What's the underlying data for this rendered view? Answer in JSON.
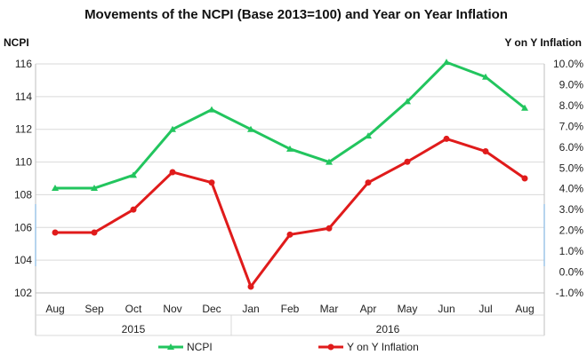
{
  "chart_data": {
    "type": "line",
    "title": "Movements of the NCPI (Base 2013=100) and Year on Year Inflation",
    "ylabel_left": "NCPI",
    "ylabel_right": "Y on Y Inflation",
    "categories": [
      "Aug",
      "Sep",
      "Oct",
      "Nov",
      "Dec",
      "Jan",
      "Feb",
      "Mar",
      "Apr",
      "May",
      "Jun",
      "Jul",
      "Aug"
    ],
    "year_groups": [
      {
        "label": "2015",
        "start": 0,
        "end": 4
      },
      {
        "label": "2016",
        "start": 5,
        "end": 12
      }
    ],
    "y_left": {
      "min": 102,
      "max": 116,
      "ticks": [
        102,
        104,
        106,
        108,
        110,
        112,
        114,
        116
      ]
    },
    "y_right": {
      "min": -1.0,
      "max": 10.0,
      "ticks": [
        -1,
        0,
        1,
        2,
        3,
        4,
        5,
        6,
        7,
        8,
        9,
        10
      ],
      "tick_labels": [
        "-1.0%",
        "0.0%",
        "1.0%",
        "2.0%",
        "3.0%",
        "4.0%",
        "5.0%",
        "6.0%",
        "7.0%",
        "8.0%",
        "9.0%",
        "10.0%"
      ]
    },
    "grid": true,
    "legend_position": "bottom",
    "series": [
      {
        "name": "NCPI",
        "axis": "left",
        "color": "#22c55e",
        "marker": "triangle",
        "values": [
          108.4,
          108.4,
          109.2,
          112.0,
          113.2,
          112.0,
          110.8,
          110.0,
          111.6,
          113.7,
          116.1,
          115.2,
          113.3
        ]
      },
      {
        "name": "Y on Y Inflation",
        "axis": "right",
        "color": "#e01b1b",
        "marker": "circle",
        "values": [
          1.9,
          1.9,
          3.0,
          4.8,
          4.3,
          -0.7,
          1.8,
          2.1,
          4.3,
          5.3,
          6.4,
          5.8,
          4.5
        ]
      }
    ]
  }
}
